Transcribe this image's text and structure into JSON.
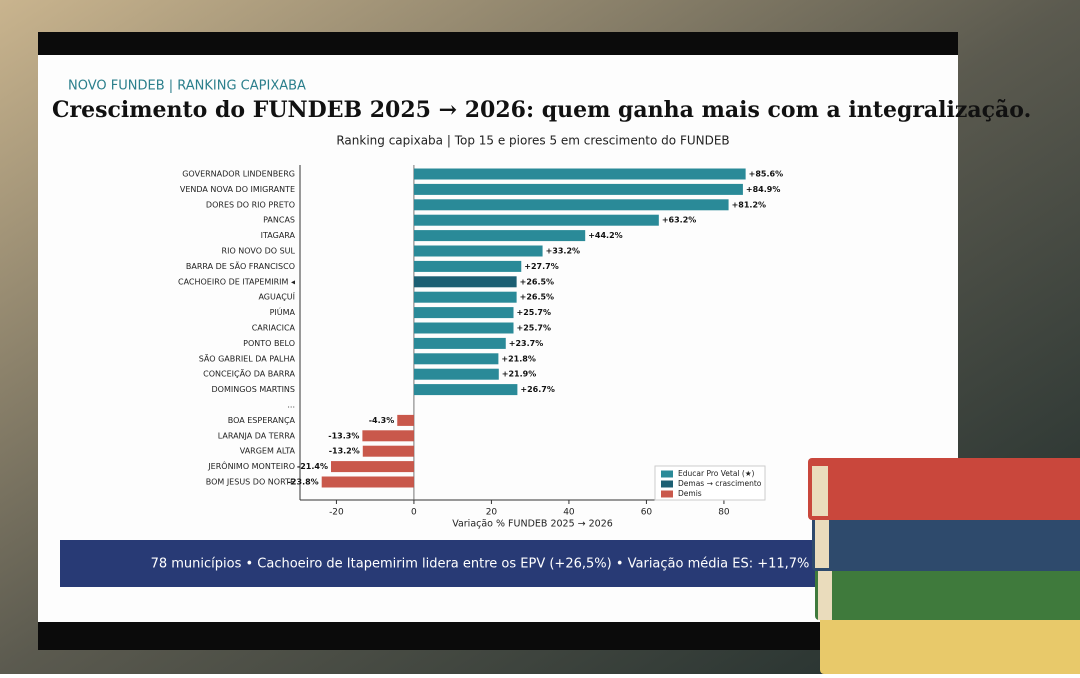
{
  "header": {
    "kicker": "NOVO FUNDEB  |  RANKING CAPIXABA",
    "title": "Crescimento do FUNDEB 2025 → 2026: quem ganha mais com a integralização."
  },
  "footer": "78 municípios • Cachoeiro de Itapemirim lidera entre os EPV (+26,5%) • Variação média ES: +11,7%",
  "chart_data": {
    "type": "hbar",
    "title": "Ranking capixaba | Top 15 e piores 5 em crescimento do FUNDEB",
    "xlabel": "Variação % FUNDEB 2025 → 2026",
    "categories": [
      "GOVERNADOR LINDENBERG",
      "VENDA NOVA DO IMIGRANTE",
      "DORES DO RIO PRETO",
      "PANCAS",
      "ITAGARA",
      "RIO NOVO DO SUL",
      "BARRA DE SÃO FRANCISCO",
      "CACHOEIRO DE ITAPEMIRIM ◂",
      "AGUAÇUÍ",
      "PIÚMA",
      "CARIACICA",
      "PONTO BELO",
      "SÃO GABRIEL DA PALHA",
      "CONCEIÇÃO DA BARRA",
      "DOMINGOS MARTINS",
      "...",
      "BOA ESPERANÇA",
      "LARANJA DA TERRA",
      "VARGEM ALTA",
      "JERÔNIMO MONTEIRO",
      "BOM JESUS DO NORTE"
    ],
    "values": [
      85.6,
      84.9,
      81.2,
      63.2,
      44.2,
      33.2,
      27.7,
      26.5,
      26.5,
      25.7,
      25.7,
      23.7,
      21.8,
      21.9,
      26.7,
      null,
      -4.3,
      -13.3,
      -13.2,
      -21.4,
      -23.8
    ],
    "value_labels": [
      "+85.6%",
      "+84.9%",
      "+81.2%",
      "+63.2%",
      "+44.2%",
      "+33.2%",
      "+27.7%",
      "+26.5%",
      "+26.5%",
      "+25.7%",
      "+25.7%",
      "+23.7%",
      "+21.8%",
      "+21.9%",
      "+26.7%",
      null,
      "-4.3%",
      "-13.3%",
      "-13.2%",
      "-21.4%",
      "-23.8%"
    ],
    "colors": [
      "#2a8a98",
      "#2a8a98",
      "#2a8a98",
      "#2a8a98",
      "#2a8a98",
      "#2a8a98",
      "#2a8a98",
      "#1c5f73",
      "#2a8a98",
      "#2a8a98",
      "#2a8a98",
      "#2a8a98",
      "#2a8a98",
      "#2a8a98",
      "#2a8a98",
      null,
      "#c9584b",
      "#c9584b",
      "#c9584b",
      "#c9584b",
      "#c9584b"
    ],
    "xlim": [
      -29.4,
      90.6
    ],
    "xticks": [
      -20,
      0,
      20,
      40,
      60,
      80
    ],
    "legend": [
      {
        "name": "Educar Pro Vetal (★)",
        "color": "#2a8a98"
      },
      {
        "name": "Demas → crascimento",
        "color": "#1c5f73"
      },
      {
        "name": "Demis",
        "color": "#c9584b"
      }
    ]
  }
}
